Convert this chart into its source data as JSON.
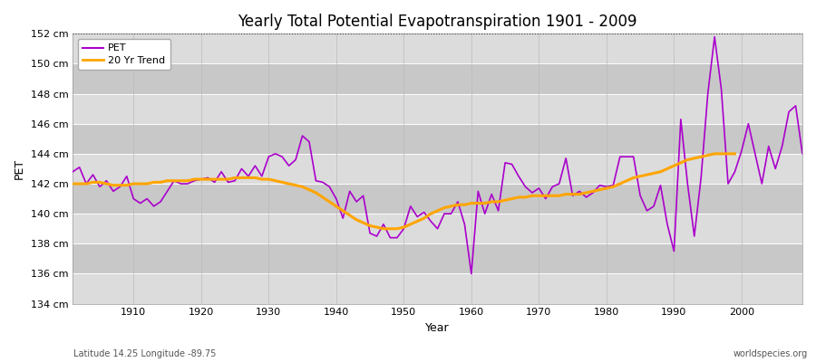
{
  "title": "Yearly Total Potential Evapotranspiration 1901 - 2009",
  "ylabel": "PET",
  "xlabel": "Year",
  "bottom_left_label": "Latitude 14.25 Longitude -89.75",
  "bottom_right_label": "worldspecies.org",
  "pet_color": "#AA00CC",
  "trend_color": "#FFA500",
  "bg_color_light": "#DCDCDC",
  "bg_color_dark": "#C8C8C8",
  "ylim": [
    134,
    152
  ],
  "yticks": [
    134,
    136,
    138,
    140,
    142,
    144,
    146,
    148,
    150,
    152
  ],
  "ytick_labels": [
    "134 cm",
    "136 cm",
    "138 cm",
    "140 cm",
    "142 cm",
    "144 cm",
    "146 cm",
    "148 cm",
    "150 cm",
    "152 cm"
  ],
  "years": [
    1901,
    1902,
    1903,
    1904,
    1905,
    1906,
    1907,
    1908,
    1909,
    1910,
    1911,
    1912,
    1913,
    1914,
    1915,
    1916,
    1917,
    1918,
    1919,
    1920,
    1921,
    1922,
    1923,
    1924,
    1925,
    1926,
    1927,
    1928,
    1929,
    1930,
    1931,
    1932,
    1933,
    1934,
    1935,
    1936,
    1937,
    1938,
    1939,
    1940,
    1941,
    1942,
    1943,
    1944,
    1945,
    1946,
    1947,
    1948,
    1949,
    1950,
    1951,
    1952,
    1953,
    1954,
    1955,
    1956,
    1957,
    1958,
    1959,
    1960,
    1961,
    1962,
    1963,
    1964,
    1965,
    1966,
    1967,
    1968,
    1969,
    1970,
    1971,
    1972,
    1973,
    1974,
    1975,
    1976,
    1977,
    1978,
    1979,
    1980,
    1981,
    1982,
    1983,
    1984,
    1985,
    1986,
    1987,
    1988,
    1989,
    1990,
    1991,
    1992,
    1993,
    1994,
    1995,
    1996,
    1997,
    1998,
    1999,
    2000,
    2001,
    2002,
    2003,
    2004,
    2005,
    2006,
    2007,
    2008,
    2009
  ],
  "pet_values": [
    142.8,
    143.1,
    142.0,
    142.6,
    141.8,
    142.2,
    141.5,
    141.8,
    142.5,
    141.0,
    140.7,
    141.0,
    140.5,
    140.8,
    141.5,
    142.2,
    142.0,
    142.0,
    142.2,
    142.3,
    142.4,
    142.1,
    142.8,
    142.1,
    142.2,
    143.0,
    142.5,
    143.2,
    142.5,
    143.8,
    144.0,
    143.8,
    143.2,
    143.6,
    145.2,
    144.8,
    142.2,
    142.1,
    141.8,
    141.0,
    139.7,
    141.5,
    140.8,
    141.2,
    138.7,
    138.5,
    139.3,
    138.4,
    138.4,
    139.0,
    140.5,
    139.8,
    140.1,
    139.5,
    139.0,
    140.0,
    140.0,
    140.8,
    139.3,
    136.0,
    141.5,
    140.0,
    141.3,
    140.2,
    143.4,
    143.3,
    142.5,
    141.8,
    141.4,
    141.7,
    141.0,
    141.8,
    142.0,
    143.7,
    141.2,
    141.5,
    141.1,
    141.4,
    141.9,
    141.8,
    141.9,
    143.8,
    143.8,
    143.8,
    141.2,
    140.2,
    140.5,
    141.9,
    139.3,
    137.5,
    146.3,
    142.0,
    138.5,
    142.4,
    148.0,
    151.8,
    148.3,
    142.0,
    142.8,
    144.2,
    146.0,
    144.0,
    142.0,
    144.5,
    143.0,
    144.5,
    146.8,
    147.2,
    144.0
  ],
  "trend_values": [
    142.0,
    142.0,
    142.0,
    142.1,
    142.1,
    142.0,
    141.9,
    141.9,
    141.9,
    142.0,
    142.0,
    142.0,
    142.1,
    142.1,
    142.2,
    142.2,
    142.2,
    142.2,
    142.3,
    142.3,
    142.3,
    142.3,
    142.3,
    142.3,
    142.4,
    142.4,
    142.4,
    142.4,
    142.3,
    142.3,
    142.2,
    142.1,
    142.0,
    141.9,
    141.8,
    141.6,
    141.4,
    141.1,
    140.8,
    140.5,
    140.2,
    139.9,
    139.6,
    139.4,
    139.2,
    139.1,
    139.0,
    139.0,
    139.0,
    139.1,
    139.3,
    139.5,
    139.7,
    140.0,
    140.2,
    140.4,
    140.5,
    140.6,
    140.6,
    140.7,
    140.7,
    140.7,
    140.8,
    140.8,
    140.9,
    141.0,
    141.1,
    141.1,
    141.2,
    141.2,
    141.2,
    141.2,
    141.2,
    141.3,
    141.3,
    141.3,
    141.4,
    141.5,
    141.6,
    141.7,
    141.8,
    142.0,
    142.2,
    142.4,
    142.5,
    142.6,
    142.7,
    142.8,
    143.0,
    143.2,
    143.4,
    143.6,
    143.7,
    143.8,
    143.9,
    144.0,
    144.0,
    144.0,
    144.0,
    null,
    null,
    null,
    null,
    null,
    null,
    null,
    null,
    null,
    null
  ],
  "figsize": [
    9.0,
    4.0
  ],
  "dpi": 100
}
